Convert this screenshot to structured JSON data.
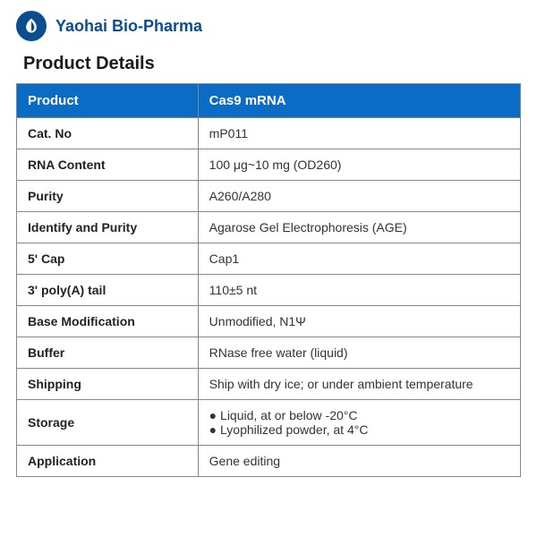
{
  "header": {
    "company_name": "Yaohai Bio-Pharma",
    "logo_bg_color": "#0a4e8f"
  },
  "section_title": "Product Details",
  "table": {
    "header_bg": "#0a6cc4",
    "header_text_color": "#ffffff",
    "border_color": "#7a8a99",
    "product_label": "Product",
    "product_value": "Cas9 mRNA",
    "rows": [
      {
        "label": "Cat. No",
        "value": "mP011"
      },
      {
        "label": "RNA Content",
        "value": "100 μg~10 mg (OD260)"
      },
      {
        "label": "Purity",
        "value": "A260/A280"
      },
      {
        "label": "Identify and Purity",
        "value": "Agarose Gel Electrophoresis (AGE)"
      },
      {
        "label": "5' Cap",
        "value": "Cap1"
      },
      {
        "label": "3' poly(A) tail",
        "value": "110±5 nt"
      },
      {
        "label": "Base Modification",
        "value": "Unmodified, N1Ψ"
      },
      {
        "label": "Buffer",
        "value": "RNase free water (liquid)"
      },
      {
        "label": "Shipping",
        "value": "Ship with dry ice; or under ambient temperature"
      }
    ],
    "storage_label": "Storage",
    "storage_items": [
      "Liquid, at or below -20°C",
      "Lyophilized powder, at 4°C"
    ],
    "application_label": "Application",
    "application_value": "Gene editing"
  }
}
